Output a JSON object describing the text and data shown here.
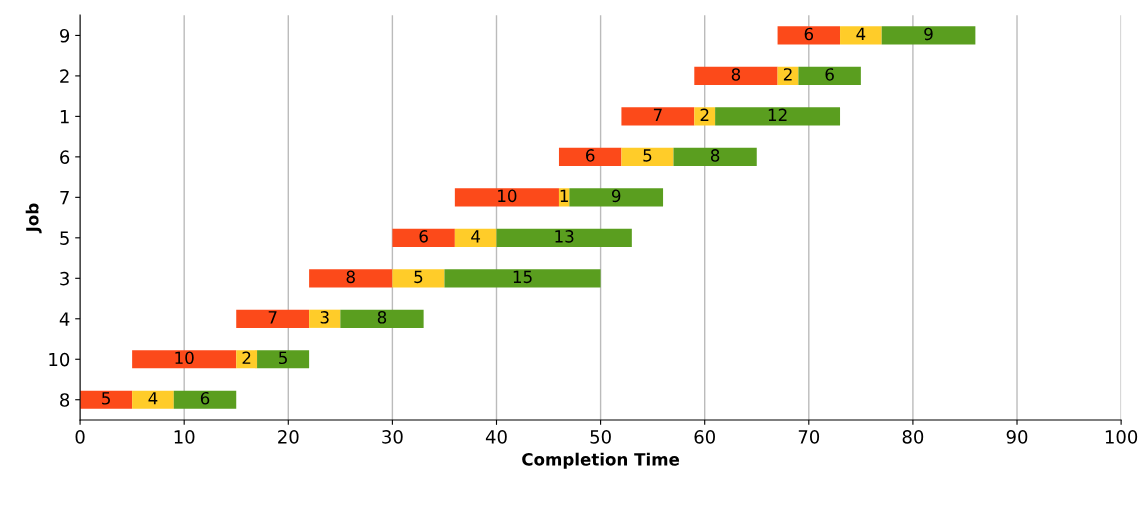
{
  "chart_data": {
    "type": "bar",
    "orientation": "horizontal",
    "xlabel": "Completion Time",
    "ylabel": "Job",
    "categories": [
      "9",
      "2",
      "1",
      "6",
      "7",
      "5",
      "3",
      "4",
      "10",
      "8"
    ],
    "series": [
      {
        "color": "#fc4a1a",
        "base": [
          67,
          59,
          52,
          46,
          36,
          30,
          22,
          15,
          5,
          0
        ],
        "values": [
          6,
          8,
          7,
          6,
          10,
          6,
          8,
          7,
          10,
          5
        ]
      },
      {
        "color": "#ffcc29",
        "base": [
          73,
          67,
          59,
          52,
          46,
          36,
          30,
          22,
          15,
          5
        ],
        "values": [
          4,
          2,
          2,
          5,
          1,
          4,
          5,
          3,
          2,
          4
        ]
      },
      {
        "color": "#5a9e1f",
        "base": [
          77,
          69,
          61,
          57,
          47,
          40,
          35,
          25,
          17,
          9
        ],
        "values": [
          9,
          6,
          12,
          8,
          9,
          13,
          15,
          8,
          5,
          6
        ]
      }
    ],
    "xlim": [
      0,
      100
    ],
    "xticks": [
      0,
      10,
      20,
      30,
      40,
      50,
      60,
      70,
      80,
      90,
      100
    ],
    "grid": "x",
    "data_labels": true,
    "legend": false
  }
}
